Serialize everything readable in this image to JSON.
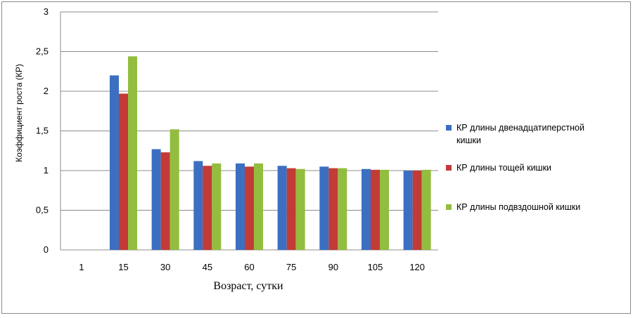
{
  "chart_data": {
    "type": "bar",
    "categories": [
      "1",
      "15",
      "30",
      "45",
      "60",
      "75",
      "90",
      "105",
      "120"
    ],
    "series": [
      {
        "name_lines": [
          "КР длины двенадцатиперстной",
          "кишки"
        ],
        "color": "#3c6fc2",
        "values": [
          0,
          2.2,
          1.27,
          1.12,
          1.09,
          1.06,
          1.05,
          1.02,
          1.0
        ]
      },
      {
        "name_lines": [
          "КР длины тощей кишки"
        ],
        "color": "#c23b36",
        "values": [
          0,
          1.97,
          1.23,
          1.06,
          1.05,
          1.03,
          1.03,
          1.01,
          1.0
        ]
      },
      {
        "name_lines": [
          "КР длины подвздошной кишки"
        ],
        "color": "#93bd3f",
        "values": [
          0,
          2.44,
          1.52,
          1.09,
          1.09,
          1.02,
          1.03,
          1.01,
          1.01
        ]
      }
    ],
    "yticks": [
      "0",
      "0,5",
      "1",
      "1,5",
      "2",
      "2,5",
      "3"
    ],
    "ylim": [
      0,
      3
    ],
    "xlabel": "Возраст, сутки",
    "ylabel": "Коэффициент роста (КР)",
    "grid": true,
    "legend_position": "right"
  }
}
